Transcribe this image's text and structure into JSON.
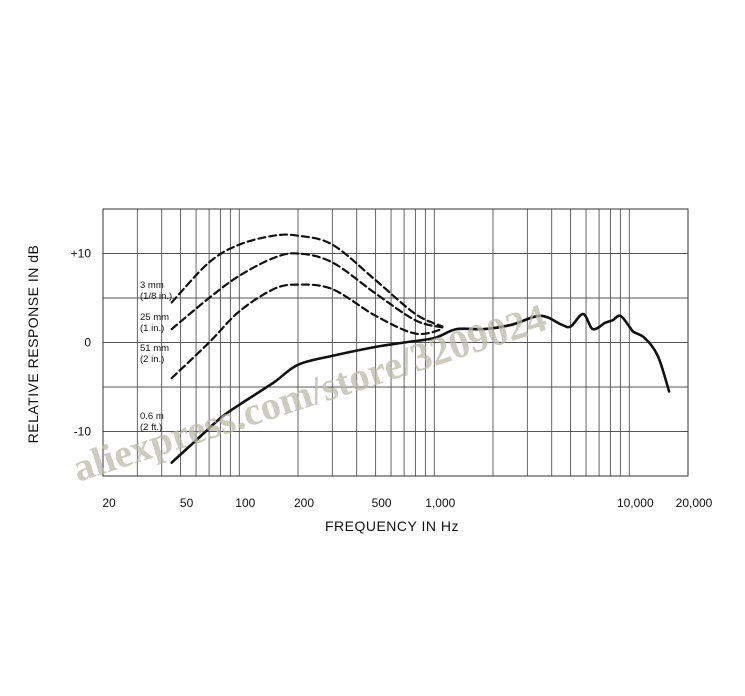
{
  "watermark": "aliexpress.com/store/3209024",
  "chart_data": {
    "type": "line",
    "xlabel": "FREQUENCY IN Hz",
    "ylabel": "RELATIVE RESPONSE IN dB",
    "x_scale": "log",
    "xlim": [
      20,
      20000
    ],
    "ylim": [
      -15,
      15
    ],
    "grid": true,
    "x_ticks": [
      {
        "value": 20,
        "label": "20"
      },
      {
        "value": 50,
        "label": "50"
      },
      {
        "value": 100,
        "label": "100"
      },
      {
        "value": 200,
        "label": "200"
      },
      {
        "value": 500,
        "label": "500"
      },
      {
        "value": 1000,
        "label": "1,000"
      },
      {
        "value": 10000,
        "label": "10,000"
      },
      {
        "value": 20000,
        "label": "20,000"
      }
    ],
    "y_ticks": [
      {
        "value": 10,
        "label": "+10"
      },
      {
        "value": 0,
        "label": "0"
      },
      {
        "value": -10,
        "label": "-10"
      }
    ],
    "series": [
      {
        "name": "3 mm (1/8 in.)",
        "style": "dashed",
        "x": [
          45,
          70,
          100,
          150,
          200,
          300,
          500,
          800,
          1100
        ],
        "y": [
          4.5,
          9,
          11,
          12,
          12,
          11,
          7,
          3.2,
          1.8
        ]
      },
      {
        "name": "25 mm (1 in.)",
        "style": "dashed",
        "x": [
          45,
          70,
          100,
          150,
          200,
          300,
          500,
          800,
          1100
        ],
        "y": [
          1.5,
          5,
          7.5,
          9.5,
          10,
          9,
          5.5,
          2.5,
          1.7
        ]
      },
      {
        "name": "51 mm (2 in.)",
        "style": "dashed",
        "x": [
          45,
          70,
          100,
          150,
          200,
          300,
          500,
          800,
          1100
        ],
        "y": [
          -4,
          0,
          3.5,
          6,
          6.5,
          6,
          3,
          1,
          1.5
        ]
      },
      {
        "name": "0.6 m (2 ft.)",
        "style": "solid",
        "x": [
          45,
          60,
          80,
          100,
          150,
          200,
          300,
          500,
          700,
          1000,
          1300,
          1800,
          2500,
          3500,
          4500,
          5000,
          5800,
          6500,
          7500,
          8200,
          9000,
          10000,
          10500,
          12000,
          14000,
          16000
        ],
        "y": [
          -13.5,
          -11,
          -8.5,
          -7,
          -4.5,
          -2.5,
          -1.5,
          -0.5,
          0,
          0.5,
          1.5,
          1.5,
          2,
          3,
          2,
          1.8,
          3.2,
          1.5,
          2.2,
          2.5,
          3,
          1.8,
          1.2,
          0.5,
          -1.5,
          -5.5
        ]
      }
    ],
    "annotations": [
      {
        "lines": [
          "3 mm",
          "(1/8 in.)"
        ]
      },
      {
        "lines": [
          "25 mm",
          "(1 in.)"
        ]
      },
      {
        "lines": [
          "51 mm",
          "(2 in.)"
        ]
      },
      {
        "lines": [
          "0.6 m",
          "(2 ft.)"
        ]
      }
    ]
  }
}
